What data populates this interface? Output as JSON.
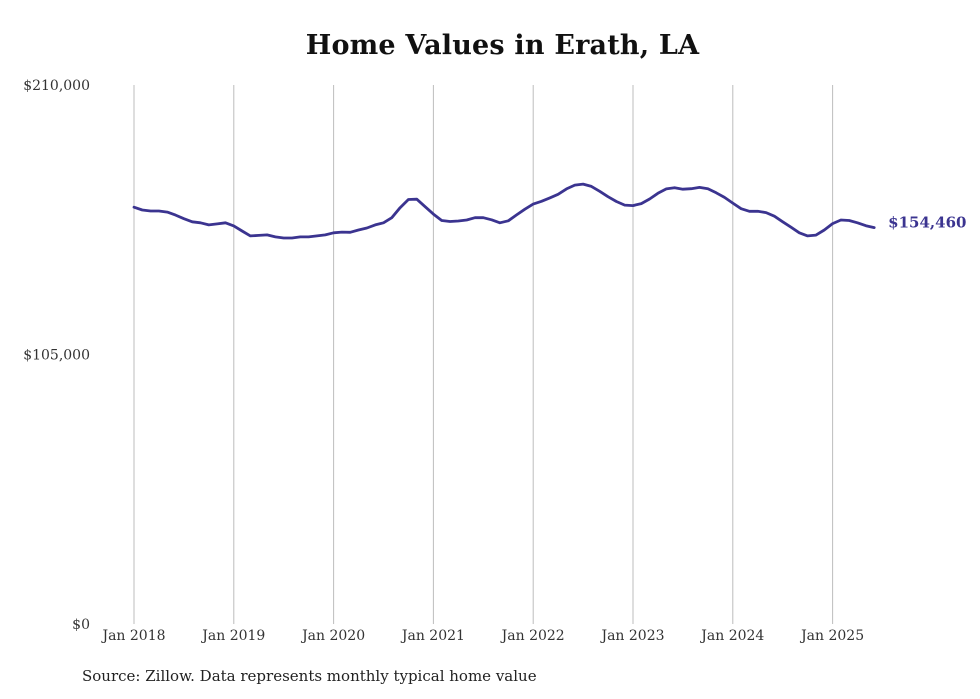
{
  "title": "Home Values in Erath, LA",
  "source_note": "Source: Zillow. Data represents monthly typical home value",
  "colors": {
    "line": "#3b3490",
    "grid": "#bdbdbd",
    "text": "#333333"
  },
  "chart_data": {
    "type": "line",
    "title": "Home Values in Erath, LA",
    "xlabel": "",
    "ylabel": "",
    "x_ticks": [
      "Jan 2018",
      "Jan 2019",
      "Jan 2020",
      "Jan 2021",
      "Jan 2022",
      "Jan 2023",
      "Jan 2024",
      "Jan 2025"
    ],
    "y_ticks": [
      {
        "value": 0,
        "label": "$0"
      },
      {
        "value": 105000,
        "label": "$105,000"
      },
      {
        "value": 210000,
        "label": "$210,000"
      }
    ],
    "ylim": [
      0,
      210000
    ],
    "grid": "vertical lines at January of each year",
    "end_label": "$154,460",
    "series": [
      {
        "points": [
          [
            "2018-01",
            162400
          ],
          [
            "2018-02",
            161300
          ],
          [
            "2018-03",
            160900
          ],
          [
            "2018-04",
            160900
          ],
          [
            "2018-05",
            160500
          ],
          [
            "2018-06",
            159300
          ],
          [
            "2018-07",
            157900
          ],
          [
            "2018-08",
            156700
          ],
          [
            "2018-09",
            156300
          ],
          [
            "2018-10",
            155500
          ],
          [
            "2018-11",
            155900
          ],
          [
            "2018-12",
            156300
          ],
          [
            "2019-01",
            155100
          ],
          [
            "2019-02",
            153100
          ],
          [
            "2019-03",
            151200
          ],
          [
            "2019-04",
            151400
          ],
          [
            "2019-05",
            151600
          ],
          [
            "2019-06",
            150800
          ],
          [
            "2019-07",
            150400
          ],
          [
            "2019-08",
            150400
          ],
          [
            "2019-09",
            150800
          ],
          [
            "2019-10",
            150800
          ],
          [
            "2019-11",
            151200
          ],
          [
            "2019-12",
            151600
          ],
          [
            "2020-01",
            152400
          ],
          [
            "2020-02",
            152700
          ],
          [
            "2020-03",
            152600
          ],
          [
            "2020-04",
            153500
          ],
          [
            "2020-05",
            154300
          ],
          [
            "2020-06",
            155500
          ],
          [
            "2020-07",
            156300
          ],
          [
            "2020-08",
            158300
          ],
          [
            "2020-09",
            162200
          ],
          [
            "2020-10",
            165400
          ],
          [
            "2020-11",
            165500
          ],
          [
            "2020-12",
            162600
          ],
          [
            "2021-01",
            159700
          ],
          [
            "2021-02",
            157200
          ],
          [
            "2021-03",
            156800
          ],
          [
            "2021-04",
            157000
          ],
          [
            "2021-05",
            157400
          ],
          [
            "2021-06",
            158300
          ],
          [
            "2021-07",
            158300
          ],
          [
            "2021-08",
            157500
          ],
          [
            "2021-09",
            156300
          ],
          [
            "2021-10",
            157100
          ],
          [
            "2021-11",
            159400
          ],
          [
            "2021-12",
            161600
          ],
          [
            "2022-01",
            163600
          ],
          [
            "2022-02",
            164700
          ],
          [
            "2022-03",
            166000
          ],
          [
            "2022-04",
            167400
          ],
          [
            "2022-05",
            169500
          ],
          [
            "2022-06",
            171000
          ],
          [
            "2022-07",
            171400
          ],
          [
            "2022-08",
            170500
          ],
          [
            "2022-09",
            168600
          ],
          [
            "2022-10",
            166500
          ],
          [
            "2022-11",
            164600
          ],
          [
            "2022-12",
            163200
          ],
          [
            "2023-01",
            163000
          ],
          [
            "2023-02",
            163800
          ],
          [
            "2023-03",
            165600
          ],
          [
            "2023-04",
            167800
          ],
          [
            "2023-05",
            169500
          ],
          [
            "2023-06",
            170000
          ],
          [
            "2023-07",
            169400
          ],
          [
            "2023-08",
            169600
          ],
          [
            "2023-09",
            170100
          ],
          [
            "2023-10",
            169600
          ],
          [
            "2023-11",
            168000
          ],
          [
            "2023-12",
            166200
          ],
          [
            "2024-01",
            164000
          ],
          [
            "2024-02",
            161800
          ],
          [
            "2024-03",
            160800
          ],
          [
            "2024-04",
            160800
          ],
          [
            "2024-05",
            160300
          ],
          [
            "2024-06",
            158900
          ],
          [
            "2024-07",
            156700
          ],
          [
            "2024-08",
            154600
          ],
          [
            "2024-09",
            152400
          ],
          [
            "2024-10",
            151200
          ],
          [
            "2024-11",
            151500
          ],
          [
            "2024-12",
            153500
          ],
          [
            "2025-01",
            156000
          ],
          [
            "2025-02",
            157400
          ],
          [
            "2025-03",
            157200
          ],
          [
            "2025-04",
            156300
          ],
          [
            "2025-05",
            155200
          ],
          [
            "2025-06",
            154460
          ]
        ]
      }
    ]
  }
}
